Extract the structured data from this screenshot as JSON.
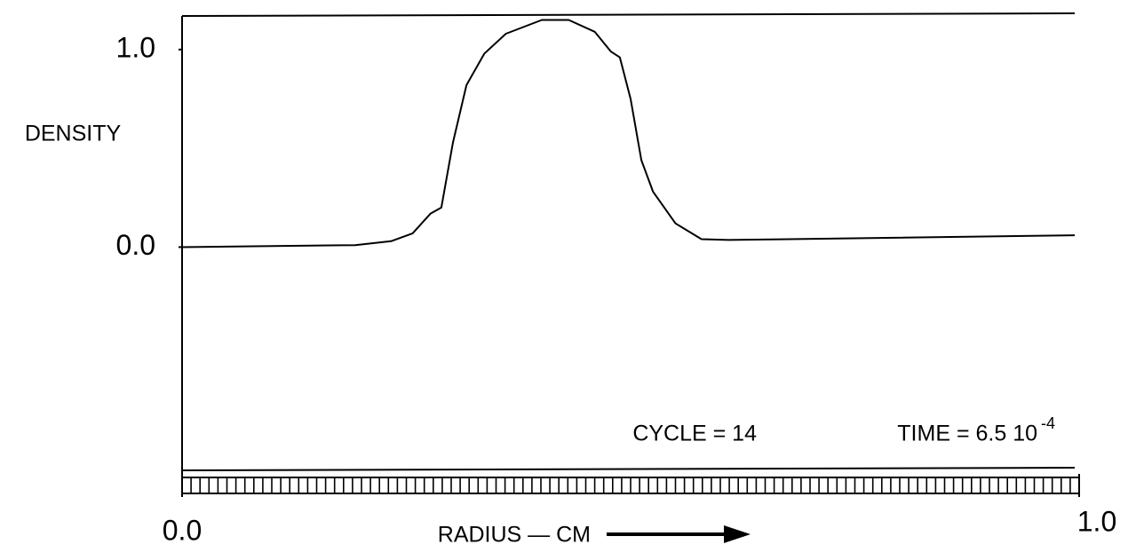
{
  "chart_data": {
    "type": "line",
    "y_label": "DENSITY",
    "x_label": "RADIUS — CM",
    "annotations": {
      "cycle": "CYCLE = 14",
      "time": "TIME = 6.5 10",
      "time_exponent": "-4"
    },
    "x": [
      0,
      0.193,
      0.233,
      0.257,
      0.277,
      0.289,
      0.302,
      0.317,
      0.337,
      0.361,
      0.401,
      0.431,
      0.46,
      0.478,
      0.488,
      0.5,
      0.512,
      0.525,
      0.55,
      0.579,
      0.609,
      0.995
    ],
    "series": [
      {
        "color": "#000000",
        "values": [
          0.0,
          0.01,
          0.03,
          0.07,
          0.17,
          0.2,
          0.53,
          0.82,
          0.98,
          1.08,
          1.15,
          1.15,
          1.09,
          0.99,
          0.96,
          0.75,
          0.44,
          0.28,
          0.12,
          0.04,
          0.036,
          0.06
        ]
      }
    ],
    "xlim": [
      0,
      1
    ],
    "ylim": [
      -1.13,
      1.17
    ],
    "xticks": [
      {
        "value": 0,
        "label": "0.0"
      },
      {
        "value": 1,
        "label": "1.0"
      }
    ],
    "yticks": [
      {
        "value": 0,
        "label": "0.0"
      },
      {
        "value": 1,
        "label": "1.0"
      }
    ],
    "minor_xtick_step": 0.01,
    "grid": false
  }
}
